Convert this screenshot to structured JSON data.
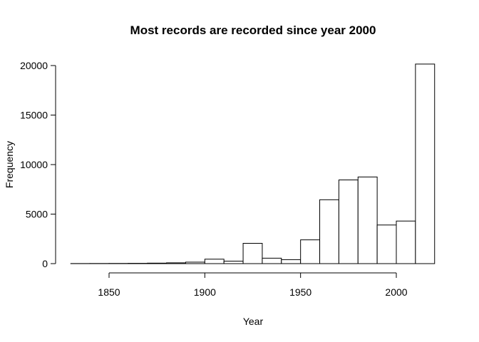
{
  "chart_data": {
    "type": "bar",
    "subtype": "histogram",
    "title": "Most records are recorded since year 2000",
    "xlabel": "Year",
    "ylabel": "Frequency",
    "bin_width": 10,
    "bins": [
      {
        "start": 1830,
        "end": 1840,
        "count": 10
      },
      {
        "start": 1840,
        "end": 1850,
        "count": 15
      },
      {
        "start": 1850,
        "end": 1860,
        "count": 20
      },
      {
        "start": 1860,
        "end": 1870,
        "count": 30
      },
      {
        "start": 1870,
        "end": 1880,
        "count": 50
      },
      {
        "start": 1880,
        "end": 1890,
        "count": 80
      },
      {
        "start": 1890,
        "end": 1900,
        "count": 150
      },
      {
        "start": 1900,
        "end": 1910,
        "count": 450
      },
      {
        "start": 1910,
        "end": 1920,
        "count": 250
      },
      {
        "start": 1920,
        "end": 1930,
        "count": 2050
      },
      {
        "start": 1930,
        "end": 1940,
        "count": 550
      },
      {
        "start": 1940,
        "end": 1950,
        "count": 400
      },
      {
        "start": 1950,
        "end": 1960,
        "count": 2400
      },
      {
        "start": 1960,
        "end": 1970,
        "count": 6450
      },
      {
        "start": 1970,
        "end": 1980,
        "count": 8450
      },
      {
        "start": 1980,
        "end": 1990,
        "count": 8750
      },
      {
        "start": 1990,
        "end": 2000,
        "count": 3900
      },
      {
        "start": 2000,
        "end": 2010,
        "count": 4300
      },
      {
        "start": 2010,
        "end": 2020,
        "count": 20150
      }
    ],
    "xlim": [
      1830,
      2020
    ],
    "ylim": [
      0,
      20000
    ],
    "x_ticks": [
      1850,
      1900,
      1950,
      2000
    ],
    "y_ticks": [
      0,
      5000,
      10000,
      15000,
      20000
    ],
    "x_tick_labels": [
      "1850",
      "1900",
      "1950",
      "2000"
    ],
    "y_tick_labels": [
      "0",
      "5000",
      "10000",
      "15000",
      "20000"
    ],
    "grid": false,
    "legend": "none",
    "colors": {
      "bar_fill": "#ffffff",
      "bar_stroke": "#000000"
    }
  }
}
